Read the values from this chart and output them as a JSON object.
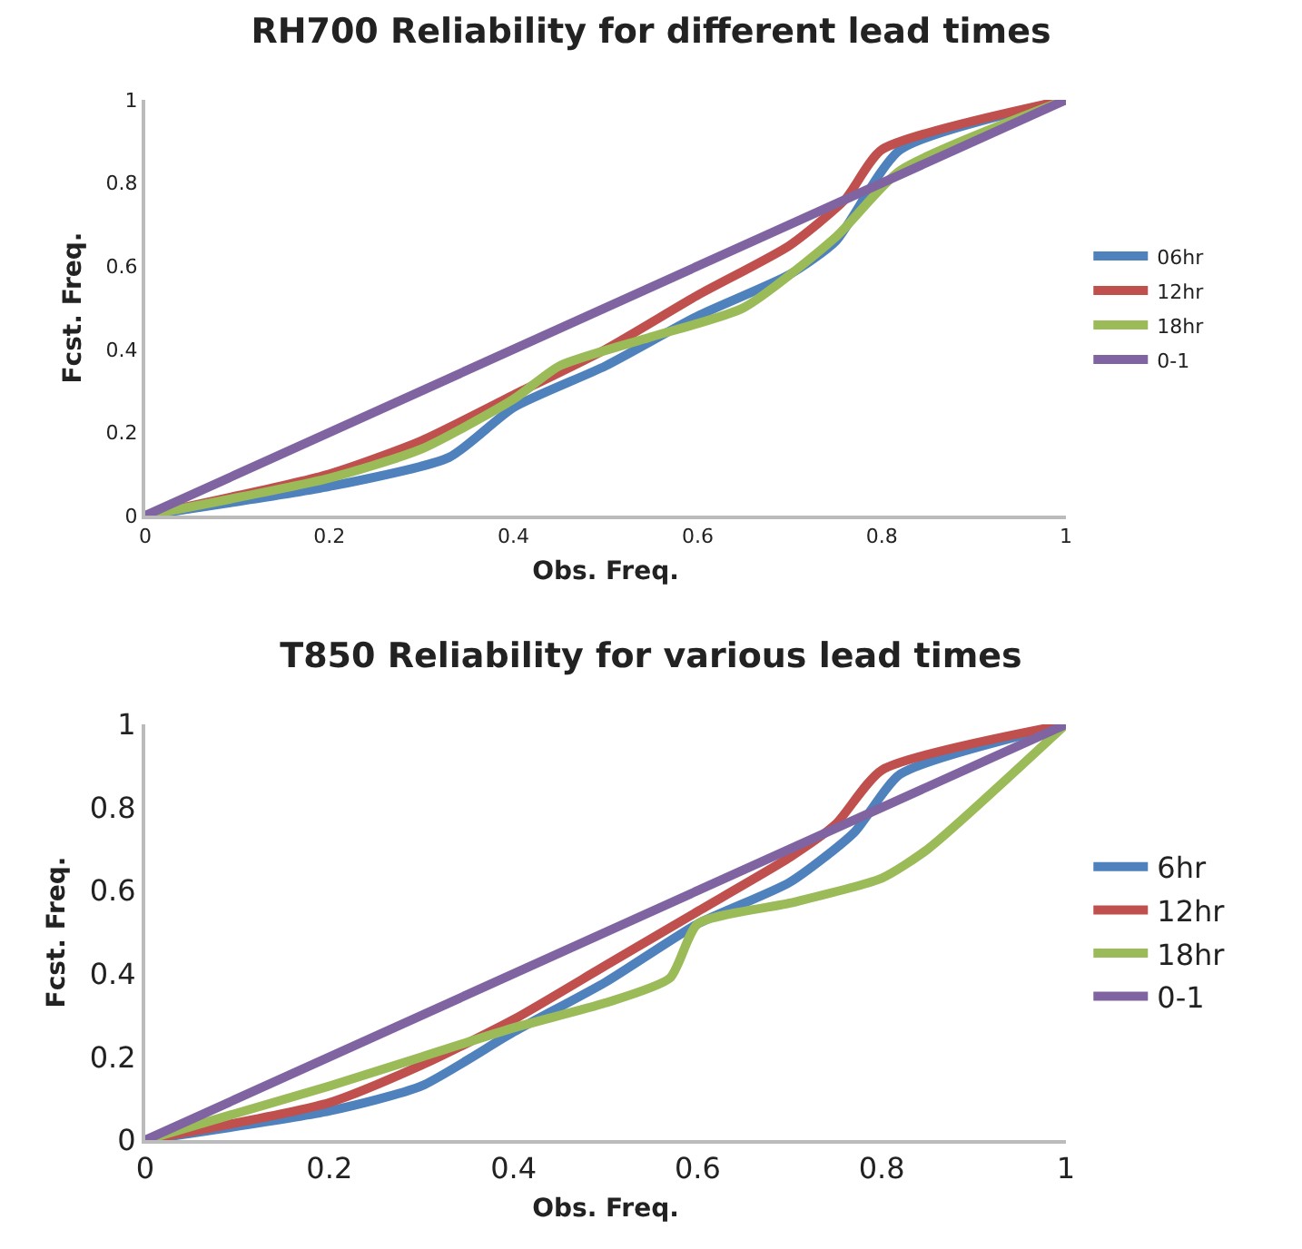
{
  "chart_data": [
    {
      "type": "line",
      "title": "RH700 Reliability for different lead times",
      "xlabel": "Obs. Freq.",
      "ylabel": "Fcst. Freq.",
      "xlim": [
        0,
        1
      ],
      "ylim": [
        0,
        1
      ],
      "xticks": [
        0,
        0.2,
        0.4,
        0.6,
        0.8,
        1
      ],
      "yticks": [
        0,
        0.2,
        0.4,
        0.6,
        0.8,
        1
      ],
      "grid": false,
      "legend": "right",
      "marker": "none",
      "line_style": "solid",
      "series": [
        {
          "name": "06hr",
          "color": "#4f81bd",
          "x": [
            0,
            0.2,
            0.33,
            0.4,
            0.5,
            0.6,
            0.7,
            0.75,
            0.82,
            1
          ],
          "values": [
            0,
            0.07,
            0.14,
            0.26,
            0.36,
            0.48,
            0.58,
            0.66,
            0.88,
            1
          ]
        },
        {
          "name": "12hr",
          "color": "#c0504d",
          "x": [
            0,
            0.2,
            0.3,
            0.4,
            0.5,
            0.6,
            0.7,
            0.76,
            0.8,
            1
          ],
          "values": [
            0,
            0.1,
            0.18,
            0.29,
            0.4,
            0.53,
            0.65,
            0.76,
            0.88,
            1
          ]
        },
        {
          "name": "18hr",
          "color": "#9bbb59",
          "x": [
            0,
            0.2,
            0.3,
            0.4,
            0.45,
            0.55,
            0.65,
            0.75,
            0.82,
            1
          ],
          "values": [
            0,
            0.09,
            0.16,
            0.28,
            0.36,
            0.43,
            0.5,
            0.67,
            0.83,
            1
          ]
        },
        {
          "name": "0-1",
          "color": "#8064a2",
          "x": [
            0,
            1
          ],
          "values": [
            0,
            1
          ]
        }
      ]
    },
    {
      "type": "line",
      "title": "T850 Reliability for various lead times",
      "xlabel": "Obs. Freq.",
      "ylabel": "Fcst. Freq.",
      "xlim": [
        0,
        1
      ],
      "ylim": [
        0,
        1
      ],
      "xticks": [
        0,
        0.2,
        0.4,
        0.6,
        0.8,
        1
      ],
      "yticks": [
        0,
        0.2,
        0.4,
        0.6,
        0.8,
        1
      ],
      "grid": false,
      "legend": "right",
      "marker": "none",
      "line_style": "solid",
      "series": [
        {
          "name": "6hr",
          "color": "#4f81bd",
          "x": [
            0,
            0.2,
            0.3,
            0.4,
            0.5,
            0.6,
            0.7,
            0.77,
            0.82,
            1
          ],
          "values": [
            0,
            0.07,
            0.13,
            0.26,
            0.38,
            0.52,
            0.62,
            0.74,
            0.88,
            1
          ]
        },
        {
          "name": "12hr",
          "color": "#c0504d",
          "x": [
            0,
            0.2,
            0.3,
            0.4,
            0.5,
            0.6,
            0.7,
            0.75,
            0.8,
            1
          ],
          "values": [
            0,
            0.09,
            0.18,
            0.29,
            0.42,
            0.55,
            0.68,
            0.76,
            0.89,
            1
          ]
        },
        {
          "name": "18hr",
          "color": "#9bbb59",
          "x": [
            0,
            0.2,
            0.3,
            0.4,
            0.5,
            0.57,
            0.6,
            0.7,
            0.8,
            0.85,
            1
          ],
          "values": [
            0,
            0.13,
            0.2,
            0.27,
            0.33,
            0.39,
            0.52,
            0.57,
            0.63,
            0.7,
            1
          ]
        },
        {
          "name": "0-1",
          "color": "#8064a2",
          "x": [
            0,
            1
          ],
          "values": [
            0,
            1
          ]
        }
      ]
    }
  ]
}
